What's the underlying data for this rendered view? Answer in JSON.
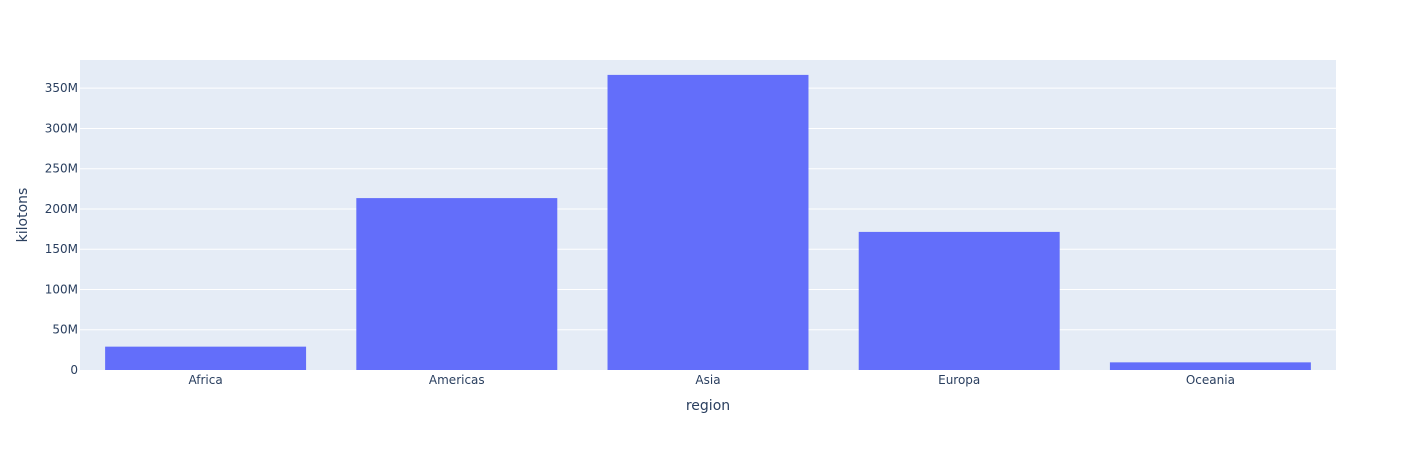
{
  "chart_data": {
    "type": "bar",
    "categories": [
      "Africa",
      "Americas",
      "Asia",
      "Europa",
      "Oceania"
    ],
    "values": [
      29000000,
      213500000,
      366500000,
      171500000,
      9500000
    ],
    "xlabel": "region",
    "ylabel": "kilotons",
    "ylim": [
      0,
      385000000
    ],
    "yticks": [
      0,
      50000000,
      100000000,
      150000000,
      200000000,
      250000000,
      300000000,
      350000000
    ],
    "ytick_labels": [
      "0",
      "50M",
      "100M",
      "150M",
      "200M",
      "250M",
      "300M",
      "350M"
    ],
    "grid": true,
    "bar_color": "#636efa",
    "plot_background": "#e5ecf6",
    "gridline_color": "#ffffff"
  }
}
